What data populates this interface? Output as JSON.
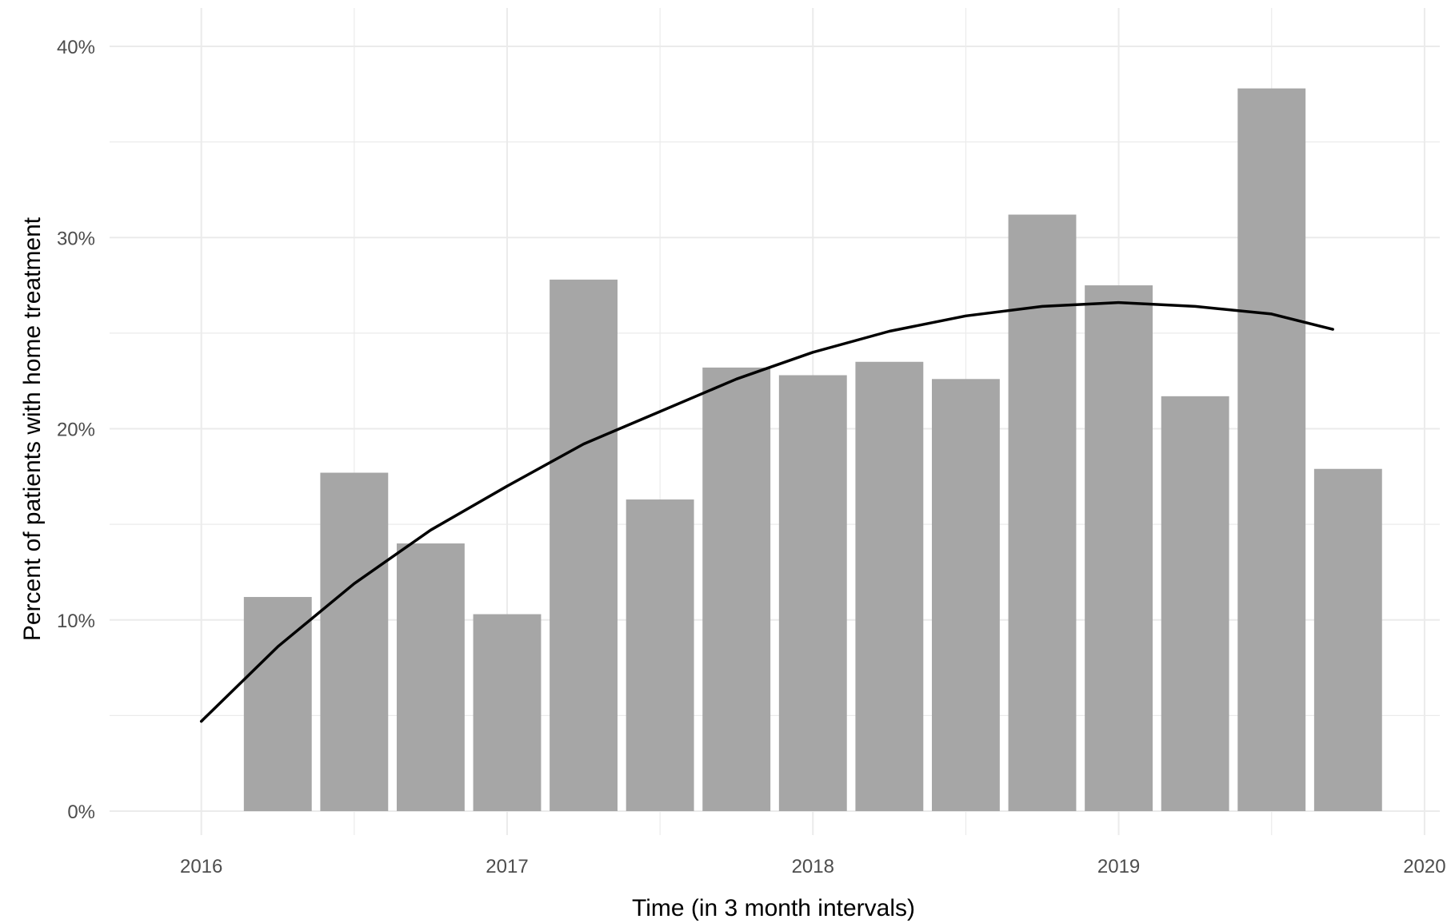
{
  "chart_data": {
    "type": "bar",
    "xlabel": "Time (in 3 month intervals)",
    "ylabel": "Percent of patients with home treatment",
    "x_ticks": [
      "2016",
      "2017",
      "2018",
      "2019",
      "2020"
    ],
    "y_ticks": [
      "0%",
      "10%",
      "20%",
      "30%",
      "40%"
    ],
    "xlim": [
      2015.7,
      2020.05
    ],
    "ylim": [
      0,
      40
    ],
    "grid": true,
    "bar_color": "#a6a6a6",
    "series": [
      {
        "type": "bar",
        "x": [
          2016.25,
          2016.5,
          2016.75,
          2017.0,
          2017.25,
          2017.5,
          2017.75,
          2018.0,
          2018.25,
          2018.5,
          2018.75,
          2019.0,
          2019.25,
          2019.5,
          2019.75
        ],
        "values": [
          11.2,
          17.7,
          14.0,
          10.3,
          27.8,
          16.3,
          23.2,
          22.8,
          23.5,
          22.6,
          31.2,
          27.5,
          21.7,
          37.8,
          17.9
        ]
      },
      {
        "type": "line",
        "x": [
          2016.0,
          2016.25,
          2016.5,
          2016.75,
          2017.0,
          2017.25,
          2017.5,
          2017.75,
          2018.0,
          2018.25,
          2018.5,
          2018.75,
          2019.0,
          2019.25,
          2019.5,
          2019.7
        ],
        "values": [
          4.7,
          8.6,
          11.9,
          14.7,
          17.0,
          19.2,
          20.9,
          22.6,
          24.0,
          25.1,
          25.9,
          26.4,
          26.6,
          26.4,
          26.0,
          25.2
        ]
      }
    ]
  }
}
